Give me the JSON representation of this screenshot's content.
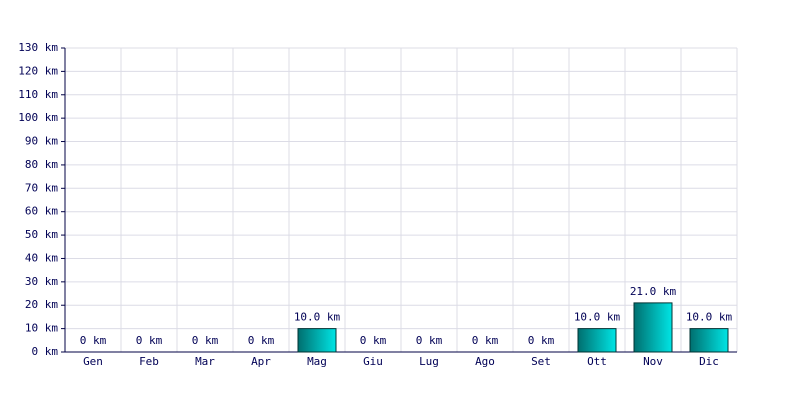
{
  "chart_data": {
    "type": "bar",
    "categories": [
      "Gen",
      "Feb",
      "Mar",
      "Apr",
      "Mag",
      "Giu",
      "Lug",
      "Ago",
      "Set",
      "Ott",
      "Nov",
      "Dic"
    ],
    "values": [
      0,
      0,
      0,
      0,
      10,
      0,
      0,
      0,
      0,
      10,
      21,
      10
    ],
    "value_labels": [
      "0 km",
      "0 km",
      "0 km",
      "0 km",
      "10.0 km",
      "0 km",
      "0 km",
      "0 km",
      "0 km",
      "10.0 km",
      "21.0 km",
      "10.0 km"
    ],
    "color": "#00e5e5",
    "ylim": [
      0,
      130
    ],
    "yticks": [
      {
        "value": 0,
        "label": "0 km"
      },
      {
        "value": 10,
        "label": "10 km"
      },
      {
        "value": 20,
        "label": "20 km"
      },
      {
        "value": 30,
        "label": "30 km"
      },
      {
        "value": 40,
        "label": "40 km"
      },
      {
        "value": 50,
        "label": "50 km"
      },
      {
        "value": 60,
        "label": "60 km"
      },
      {
        "value": 70,
        "label": "70 km"
      },
      {
        "value": 80,
        "label": "80 km"
      },
      {
        "value": 90,
        "label": "90 km"
      },
      {
        "value": 100,
        "label": "100 km"
      },
      {
        "value": 110,
        "label": "110 km"
      },
      {
        "value": 120,
        "label": "120 km"
      },
      {
        "value": 130,
        "label": "130 km"
      }
    ],
    "grid": true
  }
}
